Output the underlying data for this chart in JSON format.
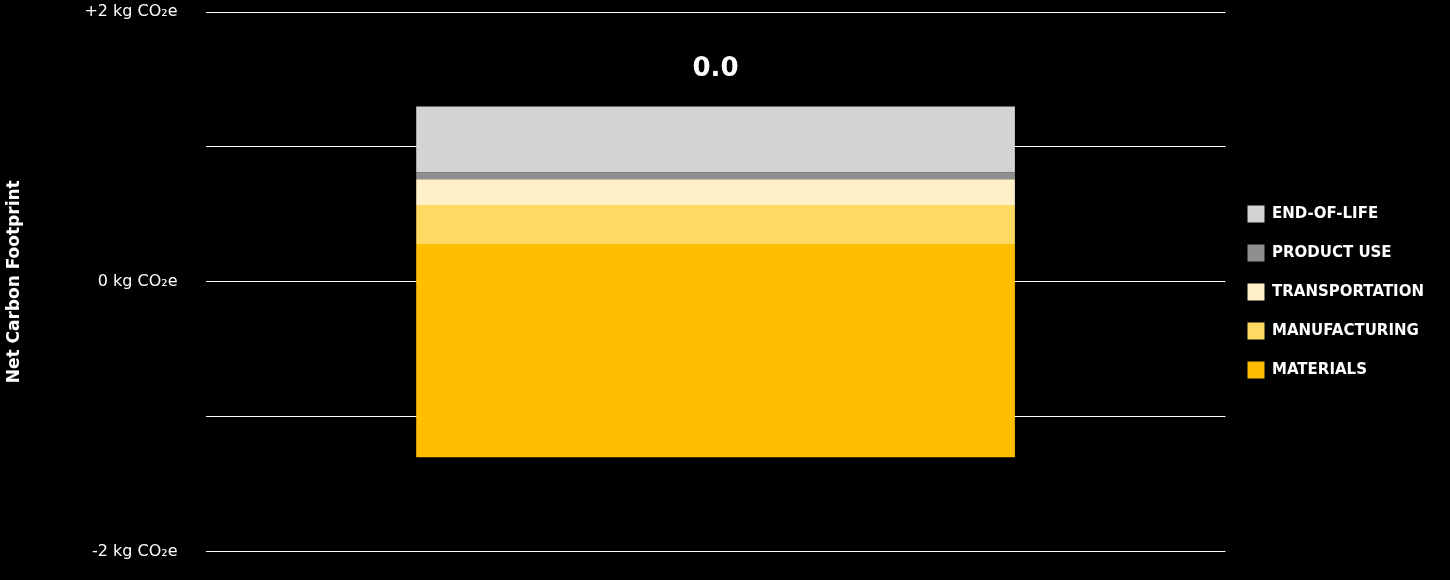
{
  "chart_data": {
    "type": "bar",
    "ylabel": "Net Carbon Footprint",
    "categories": [
      null
    ],
    "series": [
      {
        "name": "MATERIALS",
        "color": "#ffbe00",
        "base": [
          -1.3
        ],
        "values": [
          1.58
        ]
      },
      {
        "name": "MANUFACTURING",
        "color": "#ffda62",
        "base": [
          0.28
        ],
        "values": [
          0.29
        ]
      },
      {
        "name": "TRANSPORTATION",
        "color": "#fff0c8",
        "base": [
          0.57
        ],
        "values": [
          0.19
        ]
      },
      {
        "name": "PRODUCT USE",
        "color": "#8f8f8f",
        "base": [
          0.76
        ],
        "values": [
          0.05
        ]
      },
      {
        "name": "END-OF-LIFE",
        "color": "#d3d3d3",
        "base": [
          0.81
        ],
        "values": [
          0.49
        ]
      }
    ],
    "annotations": [
      "0.0"
    ],
    "ylim": [
      -2,
      2
    ],
    "yticks": [
      {
        "value": -2,
        "label": "-2 kg CO₂e"
      },
      {
        "value": -1,
        "label": null
      },
      {
        "value": 0,
        "label": "0 kg CO₂e"
      },
      {
        "value": 1,
        "label": null
      },
      {
        "value": 2,
        "label": "+2 kg CO₂e"
      }
    ],
    "grid": "y",
    "legend": "right"
  }
}
